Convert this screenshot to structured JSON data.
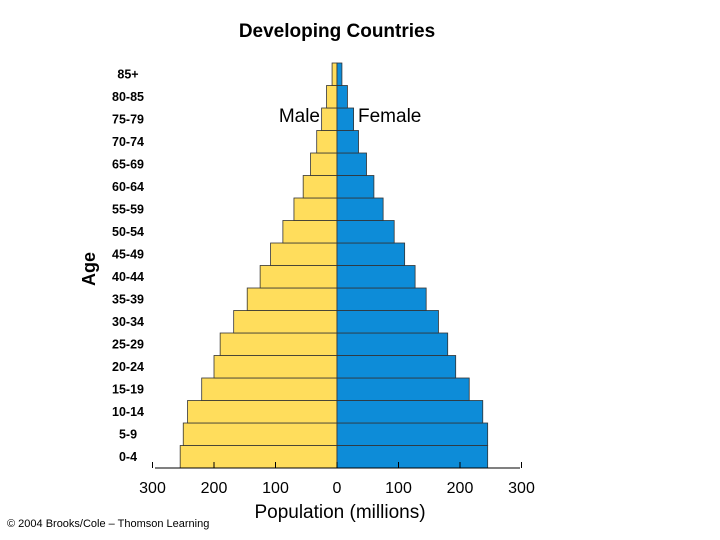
{
  "chart_data": {
    "type": "bar",
    "orientation": "horizontal-population-pyramid",
    "title": "Developing Countries",
    "ylabel": "Age",
    "xlabel": "Population (millions)",
    "x_ticks_left": [
      "300",
      "200",
      "100"
    ],
    "x_tick_zero": "0",
    "x_ticks_right": [
      "100",
      "200",
      "300"
    ],
    "xlim": [
      -300,
      300
    ],
    "categories": [
      "0-4",
      "5-9",
      "10-14",
      "15-19",
      "20-24",
      "25-29",
      "30-34",
      "35-39",
      "40-44",
      "45-49",
      "50-54",
      "55-59",
      "60-64",
      "65-69",
      "70-74",
      "75-79",
      "80-85",
      "85+"
    ],
    "series": [
      {
        "name": "Male",
        "color": "#FFDD5C",
        "values": [
          255,
          250,
          243,
          220,
          200,
          190,
          168,
          146,
          125,
          108,
          88,
          70,
          55,
          43,
          33,
          25,
          17,
          8
        ]
      },
      {
        "name": "Female",
        "color": "#0D8CD8",
        "values": [
          245,
          245,
          237,
          215,
          193,
          180,
          165,
          145,
          127,
          110,
          93,
          75,
          60,
          48,
          35,
          27,
          17,
          8
        ]
      }
    ],
    "legend": {
      "placement": "top-center",
      "male_label": "Male",
      "female_label": "Female"
    },
    "grid": false
  },
  "footer": {
    "copyright": "© 2004 Brooks/Cole – Thomson Learning"
  }
}
